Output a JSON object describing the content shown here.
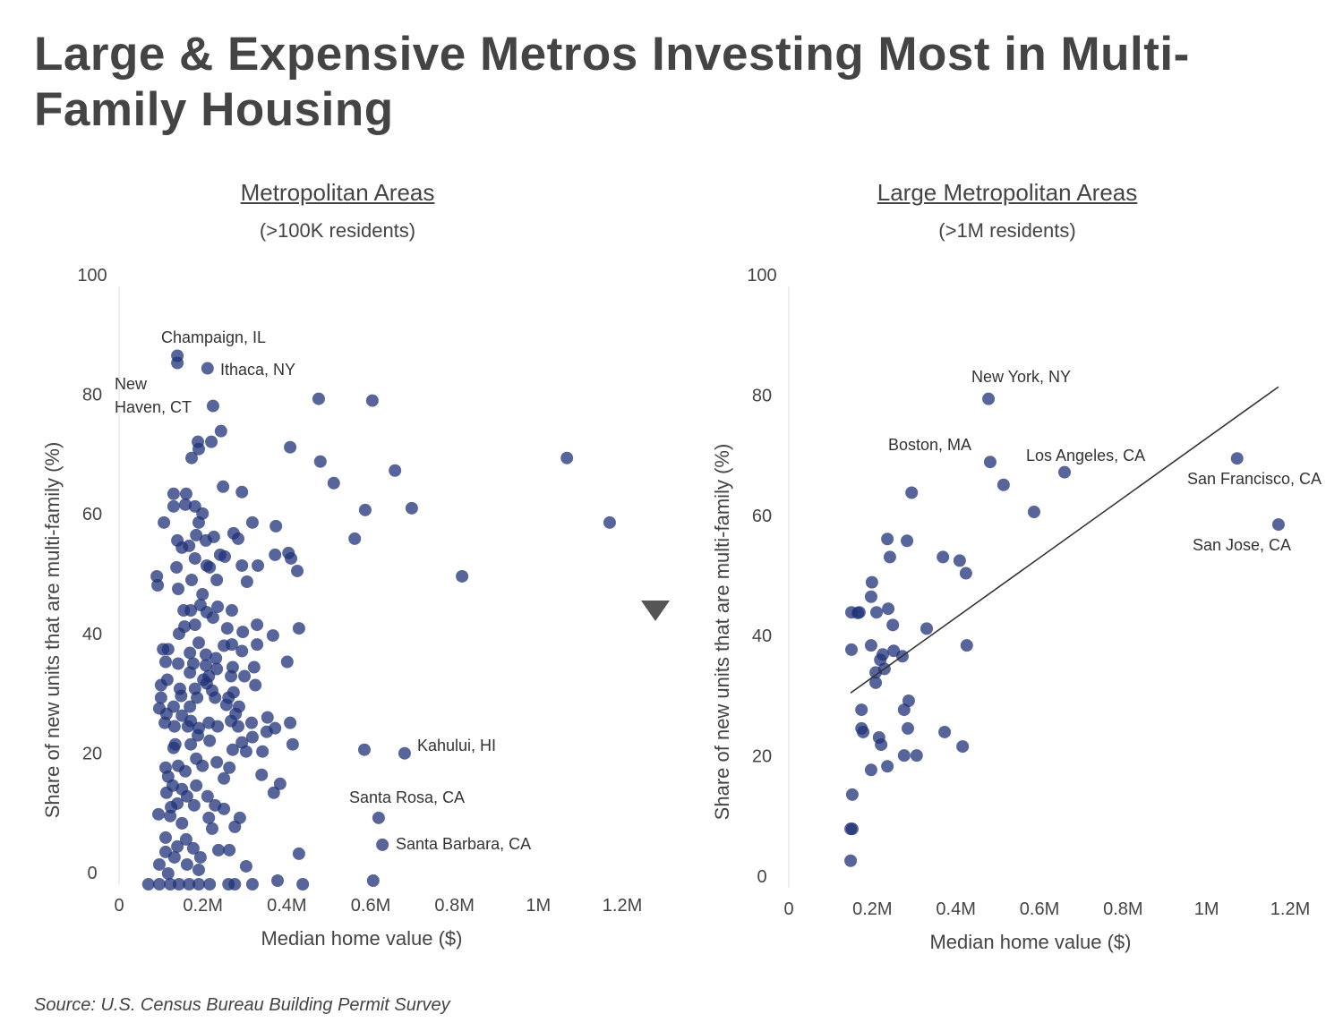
{
  "title": "Large & Expensive Metros Investing Most in Multi-Family Housing",
  "source": "Source: U.S. Census Bureau Building Permit Survey",
  "colors": {
    "point": "#1f3278",
    "trend": "#333333",
    "text": "#444444"
  },
  "toggle_icon": "triangle-down-icon",
  "chart_data": [
    {
      "type": "scatter",
      "title": "Metropolitan Areas",
      "subtitle": "(>100K residents)",
      "xlabel": "Median home value ($)",
      "ylabel": "Share of new units that are multi-family (%)",
      "xlim": [
        0,
        1.2
      ],
      "ylim": [
        0,
        100
      ],
      "xticks": [
        {
          "v": 0,
          "label": "0"
        },
        {
          "v": 0.2,
          "label": "0.2M"
        },
        {
          "v": 0.4,
          "label": "0.4M"
        },
        {
          "v": 0.6,
          "label": "0.6M"
        },
        {
          "v": 0.8,
          "label": "0.8M"
        },
        {
          "v": 1.0,
          "label": "1M"
        },
        {
          "v": 1.2,
          "label": "1.2M"
        }
      ],
      "yticks": [
        {
          "v": 0,
          "label": "0"
        },
        {
          "v": 20,
          "label": "20"
        },
        {
          "v": 40,
          "label": "40"
        },
        {
          "v": 60,
          "label": "60"
        },
        {
          "v": 80,
          "label": "80"
        },
        {
          "v": 100,
          "label": "100"
        }
      ],
      "x_units": "millions of $",
      "annotations": [
        "Champaign, IL",
        "Ithaca, NY",
        "New",
        "Haven, CT",
        "Kahului, HI",
        "Santa Rosa, CA",
        "Santa Barbara, CA"
      ],
      "points": [
        [
          0.139,
          88.4
        ],
        [
          0.139,
          87.2
        ],
        [
          0.211,
          86.3
        ],
        [
          0.224,
          80.0
        ],
        [
          0.476,
          81.2
        ],
        [
          0.604,
          80.9
        ],
        [
          0.243,
          75.8
        ],
        [
          0.188,
          74.0
        ],
        [
          0.22,
          74.0
        ],
        [
          0.19,
          72.8
        ],
        [
          0.173,
          71.3
        ],
        [
          0.408,
          73.1
        ],
        [
          0.48,
          70.7
        ],
        [
          0.658,
          69.2
        ],
        [
          1.068,
          71.3
        ],
        [
          0.248,
          66.5
        ],
        [
          0.293,
          65.6
        ],
        [
          0.512,
          67.1
        ],
        [
          0.13,
          65.3
        ],
        [
          0.16,
          65.3
        ],
        [
          0.13,
          63.2
        ],
        [
          0.181,
          63.2
        ],
        [
          0.199,
          62.0
        ],
        [
          0.158,
          63.5
        ],
        [
          0.698,
          62.9
        ],
        [
          0.587,
          62.6
        ],
        [
          1.17,
          60.5
        ],
        [
          0.107,
          60.5
        ],
        [
          0.19,
          60.5
        ],
        [
          0.318,
          60.5
        ],
        [
          0.374,
          59.9
        ],
        [
          0.184,
          58.4
        ],
        [
          0.273,
          58.7
        ],
        [
          0.284,
          57.8
        ],
        [
          0.226,
          58.1
        ],
        [
          0.562,
          57.8
        ],
        [
          0.139,
          57.5
        ],
        [
          0.15,
          56.3
        ],
        [
          0.167,
          56.6
        ],
        [
          0.207,
          57.5
        ],
        [
          0.181,
          54.5
        ],
        [
          0.241,
          55.1
        ],
        [
          0.252,
          54.8
        ],
        [
          0.372,
          55.1
        ],
        [
          0.404,
          55.4
        ],
        [
          0.41,
          54.5
        ],
        [
          0.209,
          53.3
        ],
        [
          0.216,
          53.0
        ],
        [
          0.293,
          53.3
        ],
        [
          0.331,
          53.3
        ],
        [
          0.137,
          53.0
        ],
        [
          0.425,
          52.4
        ],
        [
          0.818,
          51.5
        ],
        [
          0.09,
          51.5
        ],
        [
          0.092,
          50.0
        ],
        [
          0.173,
          50.9
        ],
        [
          0.233,
          50.9
        ],
        [
          0.305,
          50.6
        ],
        [
          0.141,
          49.4
        ],
        [
          0.199,
          48.5
        ],
        [
          0.194,
          46.7
        ],
        [
          0.235,
          46.4
        ],
        [
          0.154,
          45.8
        ],
        [
          0.171,
          45.8
        ],
        [
          0.209,
          45.5
        ],
        [
          0.269,
          45.8
        ],
        [
          0.224,
          44.6
        ],
        [
          0.181,
          43.4
        ],
        [
          0.329,
          43.4
        ],
        [
          0.429,
          42.8
        ],
        [
          0.156,
          43.1
        ],
        [
          0.367,
          41.6
        ],
        [
          0.295,
          42.2
        ],
        [
          0.258,
          42.8
        ],
        [
          0.19,
          40.4
        ],
        [
          0.143,
          41.9
        ],
        [
          0.105,
          39.3
        ],
        [
          0.117,
          39.3
        ],
        [
          0.25,
          39.9
        ],
        [
          0.269,
          40.1
        ],
        [
          0.329,
          40.1
        ],
        [
          0.169,
          38.7
        ],
        [
          0.207,
          38.4
        ],
        [
          0.231,
          37.8
        ],
        [
          0.293,
          39.0
        ],
        [
          0.401,
          37.2
        ],
        [
          0.111,
          37.2
        ],
        [
          0.141,
          36.9
        ],
        [
          0.177,
          36.9
        ],
        [
          0.207,
          36.6
        ],
        [
          0.271,
          36.3
        ],
        [
          0.322,
          36.3
        ],
        [
          0.233,
          36.0
        ],
        [
          0.169,
          35.4
        ],
        [
          0.214,
          34.8
        ],
        [
          0.267,
          34.8
        ],
        [
          0.299,
          34.8
        ],
        [
          0.115,
          34.2
        ],
        [
          0.201,
          34.2
        ],
        [
          0.209,
          33.6
        ],
        [
          0.145,
          32.7
        ],
        [
          0.181,
          32.7
        ],
        [
          0.222,
          32.4
        ],
        [
          0.273,
          32.1
        ],
        [
          0.325,
          33.3
        ],
        [
          0.1,
          33.3
        ],
        [
          0.148,
          31.5
        ],
        [
          0.186,
          31.2
        ],
        [
          0.229,
          31.2
        ],
        [
          0.261,
          31.2
        ],
        [
          0.1,
          31.2
        ],
        [
          0.286,
          29.7
        ],
        [
          0.256,
          30.0
        ],
        [
          0.169,
          29.7
        ],
        [
          0.13,
          29.7
        ],
        [
          0.096,
          29.4
        ],
        [
          0.278,
          28.5
        ],
        [
          0.15,
          28.2
        ],
        [
          0.171,
          27.3
        ],
        [
          0.113,
          28.5
        ],
        [
          0.267,
          27.3
        ],
        [
          0.354,
          27.9
        ],
        [
          0.109,
          27.0
        ],
        [
          0.214,
          27.0
        ],
        [
          0.316,
          27.0
        ],
        [
          0.132,
          26.4
        ],
        [
          0.235,
          26.4
        ],
        [
          0.164,
          26.4
        ],
        [
          0.19,
          26.1
        ],
        [
          0.284,
          26.4
        ],
        [
          0.408,
          27.0
        ],
        [
          0.352,
          25.5
        ],
        [
          0.372,
          26.1
        ],
        [
          0.188,
          24.9
        ],
        [
          0.216,
          24.0
        ],
        [
          0.293,
          23.7
        ],
        [
          0.318,
          24.6
        ],
        [
          0.134,
          23.4
        ],
        [
          0.414,
          23.4
        ],
        [
          0.171,
          23.4
        ],
        [
          0.585,
          22.5
        ],
        [
          0.681,
          21.9
        ],
        [
          0.271,
          22.5
        ],
        [
          0.303,
          22.2
        ],
        [
          0.342,
          22.2
        ],
        [
          0.13,
          22.8
        ],
        [
          0.184,
          21.0
        ],
        [
          0.141,
          19.8
        ],
        [
          0.111,
          19.5
        ],
        [
          0.199,
          19.8
        ],
        [
          0.233,
          20.4
        ],
        [
          0.263,
          19.5
        ],
        [
          0.158,
          18.9
        ],
        [
          0.34,
          18.3
        ],
        [
          0.25,
          17.7
        ],
        [
          0.117,
          18.0
        ],
        [
          0.384,
          16.8
        ],
        [
          0.369,
          15.3
        ],
        [
          0.128,
          16.5
        ],
        [
          0.184,
          16.5
        ],
        [
          0.15,
          15.9
        ],
        [
          0.211,
          14.7
        ],
        [
          0.113,
          15.3
        ],
        [
          0.162,
          14.7
        ],
        [
          0.139,
          13.5
        ],
        [
          0.229,
          13.2
        ],
        [
          0.179,
          13.2
        ],
        [
          0.25,
          12.6
        ],
        [
          0.124,
          12.9
        ],
        [
          0.094,
          11.7
        ],
        [
          0.288,
          11.1
        ],
        [
          0.619,
          11.1
        ],
        [
          0.214,
          11.1
        ],
        [
          0.122,
          11.4
        ],
        [
          0.15,
          10.2
        ],
        [
          0.276,
          9.6
        ],
        [
          0.222,
          9.3
        ],
        [
          0.111,
          7.8
        ],
        [
          0.16,
          7.5
        ],
        [
          0.628,
          6.6
        ],
        [
          0.177,
          6.0
        ],
        [
          0.139,
          6.3
        ],
        [
          0.237,
          5.7
        ],
        [
          0.263,
          5.7
        ],
        [
          0.111,
          5.4
        ],
        [
          0.429,
          5.1
        ],
        [
          0.194,
          4.5
        ],
        [
          0.132,
          4.5
        ],
        [
          0.096,
          3.3
        ],
        [
          0.162,
          3.3
        ],
        [
          0.303,
          3.0
        ],
        [
          0.19,
          2.4
        ],
        [
          0.117,
          1.8
        ],
        [
          0.378,
          0.6
        ],
        [
          0.606,
          0.6
        ],
        [
          0.07,
          0
        ],
        [
          0.096,
          0
        ],
        [
          0.122,
          0
        ],
        [
          0.143,
          0
        ],
        [
          0.167,
          0
        ],
        [
          0.19,
          0
        ],
        [
          0.216,
          0
        ],
        [
          0.261,
          0
        ],
        [
          0.276,
          0
        ],
        [
          0.318,
          0
        ],
        [
          0.438,
          0
        ]
      ]
    },
    {
      "type": "scatter",
      "title": "Large Metropolitan Areas",
      "subtitle": "(>1M residents)",
      "xlabel": "Median home value ($)",
      "ylabel": "Share of new units that are multi-family (%)",
      "xlim": [
        0,
        1.2
      ],
      "ylim": [
        0,
        100
      ],
      "xticks": [
        {
          "v": 0,
          "label": "0"
        },
        {
          "v": 0.2,
          "label": "0.2M"
        },
        {
          "v": 0.4,
          "label": "0.4M"
        },
        {
          "v": 0.6,
          "label": "0.6M"
        },
        {
          "v": 0.8,
          "label": "0.8M"
        },
        {
          "v": 1.0,
          "label": "1M"
        },
        {
          "v": 1.2,
          "label": "1.2M"
        }
      ],
      "yticks": [
        {
          "v": 0,
          "label": "0"
        },
        {
          "v": 20,
          "label": "20"
        },
        {
          "v": 40,
          "label": "40"
        },
        {
          "v": 60,
          "label": "60"
        },
        {
          "v": 80,
          "label": "80"
        },
        {
          "v": 100,
          "label": "100"
        }
      ],
      "x_units": "millions of $",
      "annotations": [
        "New York, NY",
        "Boston, MA",
        "Los Angeles, CA",
        "San Francisco, CA",
        "San Jose, CA"
      ],
      "trendline": [
        [
          0.148,
          32.4
        ],
        [
          1.172,
          83.3
        ]
      ],
      "points": [
        [
          0.478,
          81.3
        ],
        [
          0.482,
          70.8
        ],
        [
          0.514,
          67.0
        ],
        [
          0.66,
          69.1
        ],
        [
          0.587,
          62.5
        ],
        [
          1.073,
          71.4
        ],
        [
          1.172,
          60.4
        ],
        [
          0.294,
          65.7
        ],
        [
          0.236,
          58.0
        ],
        [
          0.283,
          57.7
        ],
        [
          0.242,
          55.0
        ],
        [
          0.369,
          55.0
        ],
        [
          0.409,
          54.4
        ],
        [
          0.424,
          52.3
        ],
        [
          0.199,
          50.8
        ],
        [
          0.197,
          48.4
        ],
        [
          0.15,
          45.8
        ],
        [
          0.169,
          45.8
        ],
        [
          0.165,
          45.7
        ],
        [
          0.21,
          45.8
        ],
        [
          0.238,
          46.4
        ],
        [
          0.249,
          43.7
        ],
        [
          0.33,
          43.1
        ],
        [
          0.15,
          39.6
        ],
        [
          0.197,
          40.3
        ],
        [
          0.426,
          40.3
        ],
        [
          0.225,
          38.8
        ],
        [
          0.251,
          39.4
        ],
        [
          0.272,
          38.5
        ],
        [
          0.219,
          37.9
        ],
        [
          0.229,
          36.4
        ],
        [
          0.208,
          35.8
        ],
        [
          0.208,
          34.1
        ],
        [
          0.174,
          29.6
        ],
        [
          0.287,
          31.1
        ],
        [
          0.276,
          29.6
        ],
        [
          0.174,
          26.5
        ],
        [
          0.178,
          25.9
        ],
        [
          0.285,
          26.5
        ],
        [
          0.216,
          25.0
        ],
        [
          0.221,
          23.8
        ],
        [
          0.373,
          25.9
        ],
        [
          0.416,
          23.5
        ],
        [
          0.276,
          22.0
        ],
        [
          0.306,
          22.0
        ],
        [
          0.236,
          20.2
        ],
        [
          0.197,
          19.6
        ],
        [
          0.152,
          15.5
        ],
        [
          0.148,
          9.8
        ],
        [
          0.152,
          9.8
        ],
        [
          0.148,
          4.5
        ]
      ]
    }
  ]
}
